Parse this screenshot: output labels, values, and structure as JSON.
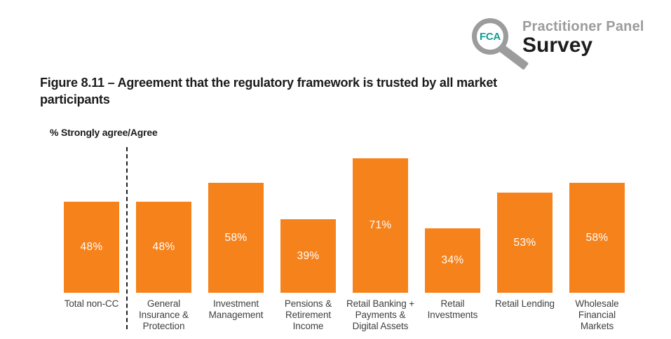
{
  "logo": {
    "fca": "FCA",
    "panel_text": "Practitioner Panel",
    "survey_text": "Survey",
    "teal": "#0f9e96",
    "gray": "#9c9c9c"
  },
  "figure_title": {
    "line1": "Figure 8.11 – Agreement that the regulatory framework is trusted by all market",
    "line2": "participants"
  },
  "chart_data": {
    "type": "bar",
    "title": "Figure 8.11 – Agreement that the regulatory framework is trusted by all market participants",
    "ylabel": "% Strongly agree/Agree",
    "xlabel": "",
    "categories": [
      "Total non-CC",
      "General Insurance & Protection",
      "Investment Management",
      "Pensions & Retirement Income",
      "Retail Banking + Payments & Digital Assets",
      "Retail Investments",
      "Retail Lending",
      "Wholesale Financial Markets"
    ],
    "category_lines": [
      [
        "Total non-CC"
      ],
      [
        "General",
        "Insurance &",
        "Protection"
      ],
      [
        "Investment",
        "Management"
      ],
      [
        "Pensions &",
        "Retirement",
        "Income"
      ],
      [
        "Retail Banking +",
        "Payments &",
        "Digital Assets"
      ],
      [
        "Retail",
        "Investments"
      ],
      [
        "Retail Lending"
      ],
      [
        "Wholesale",
        "Financial",
        "Markets"
      ]
    ],
    "values": [
      48,
      48,
      58,
      39,
      71,
      34,
      53,
      58
    ],
    "value_labels": [
      "48%",
      "48%",
      "58%",
      "39%",
      "71%",
      "34%",
      "53%",
      "58%"
    ],
    "unit": "%",
    "bar_color": "#f6821c",
    "value_label_color": "#ffffff",
    "separator": {
      "after_category_index": 0,
      "style": "dashed"
    },
    "ylim": [
      0,
      80
    ],
    "grid": false,
    "legend_position": "none"
  }
}
